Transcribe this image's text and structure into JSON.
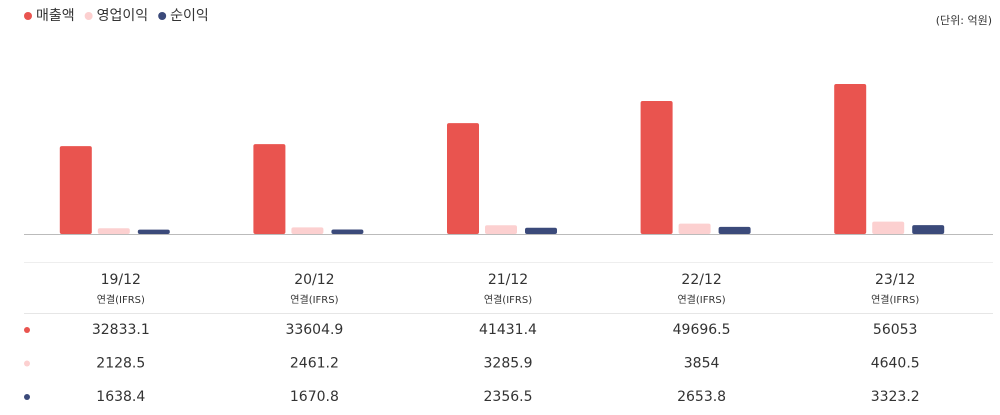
{
  "chart_data": {
    "type": "bar",
    "unit_note": "(단위: 억원)",
    "categories": [
      "19/12",
      "20/12",
      "21/12",
      "22/12",
      "23/12"
    ],
    "sublabels": [
      "연결(IFRS)",
      "연결(IFRS)",
      "연결(IFRS)",
      "연결(IFRS)",
      "연결(IFRS)"
    ],
    "series": [
      {
        "name": "매출액",
        "color": "#e9544f",
        "values": [
          32833.1,
          33604.9,
          41431.4,
          49696.5,
          56053
        ]
      },
      {
        "name": "영업이익",
        "color": "#fcd0d0",
        "values": [
          2128.5,
          2461.2,
          3285.9,
          3854,
          4640.5
        ]
      },
      {
        "name": "순이익",
        "color": "#3b4a7a",
        "values": [
          1638.4,
          1670.8,
          2356.5,
          2653.8,
          3323.2
        ]
      }
    ]
  }
}
